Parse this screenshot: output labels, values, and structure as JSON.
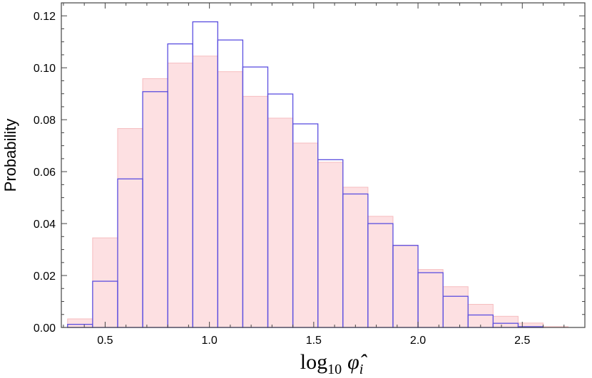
{
  "chart_data": {
    "type": "bar",
    "subtype": "overlaid-histogram",
    "xlim": [
      0.29,
      2.8
    ],
    "ylim": [
      0,
      0.125
    ],
    "bin_edges": [
      0.32,
      0.44,
      0.56,
      0.68,
      0.8,
      0.92,
      1.04,
      1.16,
      1.28,
      1.4,
      1.52,
      1.64,
      1.76,
      1.88,
      2.0,
      2.12,
      2.24,
      2.36,
      2.48,
      2.6,
      2.72
    ],
    "x_ticks": [
      "0.5",
      "1.0",
      "1.5",
      "2.0",
      "2.5"
    ],
    "x_tick_values": [
      0.5,
      1.0,
      1.5,
      2.0,
      2.5
    ],
    "y_ticks": [
      "0.00",
      "0.02",
      "0.04",
      "0.06",
      "0.08",
      "0.10",
      "0.12"
    ],
    "y_tick_values": [
      0.0,
      0.02,
      0.04,
      0.06,
      0.08,
      0.1,
      0.12
    ],
    "xlabel_main": "log",
    "xlabel_sub": "10",
    "xlabel_symbol": "φ̂",
    "xlabel_symbol_sub": "i",
    "ylabel": "Probability",
    "grid": false,
    "series": [
      {
        "style": "filled",
        "fill": "#fde0e2",
        "stroke": "#f6bcbf",
        "values": [
          0.0033,
          0.0345,
          0.0766,
          0.0958,
          0.1018,
          0.1045,
          0.0985,
          0.089,
          0.0806,
          0.071,
          0.0636,
          0.054,
          0.0428,
          0.0317,
          0.0223,
          0.0157,
          0.0089,
          0.0043,
          0.0017,
          0.0003
        ]
      },
      {
        "style": "outline",
        "stroke": "#5b4fe0",
        "values": [
          0.0012,
          0.0178,
          0.0572,
          0.0908,
          0.1092,
          0.1177,
          0.1107,
          0.1003,
          0.0899,
          0.0784,
          0.0646,
          0.0514,
          0.04,
          0.0316,
          0.0211,
          0.012,
          0.0048,
          0.0016,
          0.0003,
          0.0
        ]
      }
    ]
  }
}
